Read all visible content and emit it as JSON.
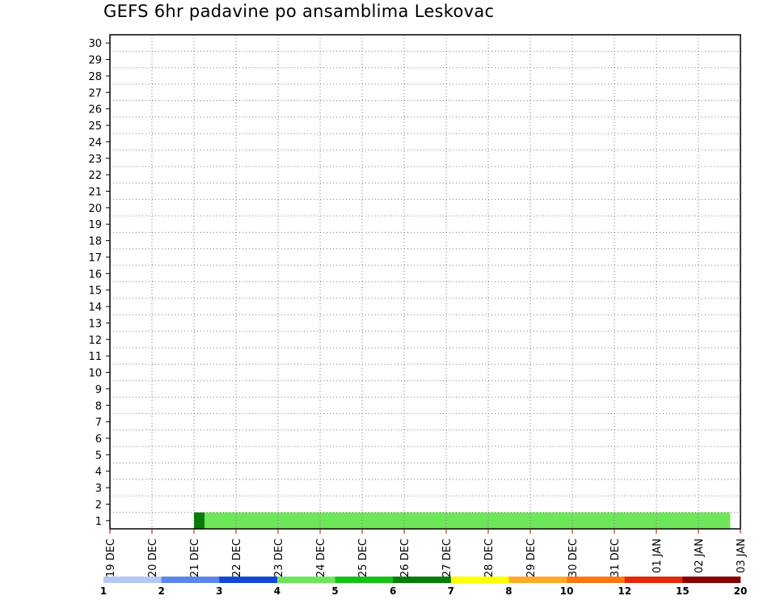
{
  "chart_data": {
    "type": "heatmap",
    "title": "GEFS 6hr padavine po ansamblima Leskovac",
    "xlabel": "",
    "ylabel": "",
    "x_tick_labels": [
      "19 DEC",
      "20 DEC",
      "21 DEC",
      "22 DEC",
      "23 DEC",
      "24 DEC",
      "25 DEC",
      "26 DEC",
      "27 DEC",
      "28 DEC",
      "29 DEC",
      "30 DEC",
      "31 DEC",
      "01 JAN",
      "02 JAN",
      "03 JAN"
    ],
    "y_tick_labels": [
      "1",
      "2",
      "3",
      "4",
      "5",
      "6",
      "7",
      "8",
      "9",
      "10",
      "11",
      "12",
      "13",
      "14",
      "15",
      "16",
      "17",
      "18",
      "19",
      "20",
      "21",
      "22",
      "23",
      "24",
      "25",
      "26",
      "27",
      "28",
      "29",
      "30"
    ],
    "x_range": [
      "19 DEC 00Z",
      "03 JAN 00Z"
    ],
    "y_range": [
      1,
      30
    ],
    "grid": true,
    "legend_placement": "bottom",
    "color_scale": {
      "boundaries": [
        "1",
        "2",
        "3",
        "4",
        "5",
        "6",
        "7",
        "8",
        "10",
        "12",
        "15",
        "20"
      ],
      "colors": [
        "#b4c8f5",
        "#5a87eb",
        "#1446d7",
        "#6ee65a",
        "#14c314",
        "#087d08",
        "#ffff00",
        "#ffaa28",
        "#ff7814",
        "#e6280a",
        "#870000"
      ]
    },
    "cells_legend": "Each member row lists [time_index, color_level]; time_index 0 = 19 DEC 00Z, step 6 h; color_level 0..10 indexes color_scale.colors",
    "members": {
      "1": [
        [
          8,
          5
        ],
        [
          9,
          3
        ],
        [
          10,
          3
        ],
        [
          11,
          3
        ],
        [
          12,
          3
        ],
        [
          13,
          3
        ],
        [
          14,
          3
        ],
        [
          15,
          3
        ],
        [
          16,
          3
        ],
        [
          17,
          3
        ],
        [
          18,
          3
        ],
        [
          19,
          3
        ],
        [
          20,
          3
        ],
        [
          21,
          3
        ],
        [
          22,
          3
        ],
        [
          23,
          3
        ],
        [
          24,
          3
        ],
        [
          25,
          3
        ],
        [
          26,
          3
        ],
        [
          27,
          3
        ],
        [
          28,
          3
        ],
        [
          29,
          3
        ],
        [
          30,
          3
        ],
        [
          31,
          3
        ],
        [
          32,
          3
        ],
        [
          33,
          3
        ],
        [
          34,
          3
        ],
        [
          35,
          3
        ],
        [
          36,
          3
        ],
        [
          37,
          3
        ],
        [
          38,
          3
        ],
        [
          39,
          3
        ],
        [
          40,
          3
        ],
        [
          41,
          3
        ],
        [
          42,
          3
        ],
        [
          43,
          3
        ],
        [
          44,
          3
        ],
        [
          45,
          3
        ],
        [
          46,
          3
        ],
        [
          47,
          3
        ],
        [
          48,
          3
        ],
        [
          49,
          3
        ],
        [
          50,
          3
        ],
        [
          51,
          3
        ],
        [
          52,
          3
        ],
        [
          53,
          3
        ],
        [
          54,
          3
        ],
        [
          55,
          3
        ],
        [
          56,
          3
        ],
        [
          57,
          3
        ],
        [
          58,
          3
        ]
      ],
      "2": []
    }
  }
}
